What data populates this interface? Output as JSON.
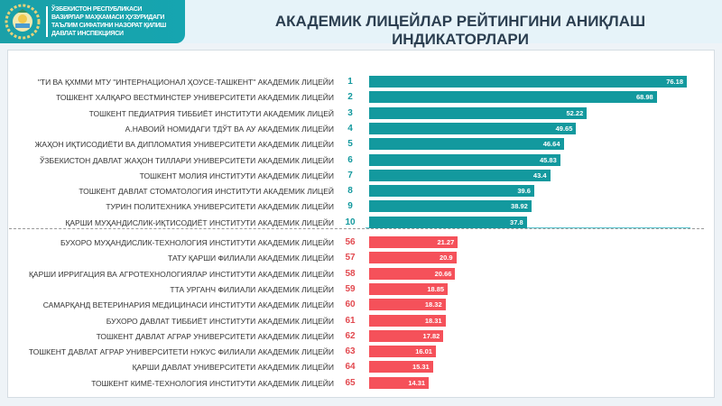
{
  "header": {
    "org_lines": [
      "ЎЗБЕКИСТОН РЕСПУБЛИКАСИ",
      "ВАЗИРЛАР МАҲКАМАСИ ҲУЗУРИДАГИ",
      "ТАЪЛИМ СИФАТИНИ НАЗОРАТ ҚИЛИШ",
      "ДАВЛАТ ИНСПЕКЦИЯСИ"
    ],
    "title": "АКАДЕМИК ЛИЦЕЙЛАР РЕЙТИНГИНИ АНИҚЛАШ ИНДИКАТОРЛАРИ"
  },
  "colors": {
    "top": "#13999e",
    "bottom": "#f5515a",
    "rank_top": "#13999e",
    "rank_bottom": "#e2494f"
  },
  "chart_data": {
    "type": "bar",
    "orientation": "horizontal",
    "title": "АКАДЕМИК ЛИЦЕЙЛАР РЕЙТИНГИНИ АНИҚЛАШ ИНДИКАТОРЛАРИ",
    "xlim": [
      0,
      80
    ],
    "series": [
      {
        "name": "top",
        "items": [
          {
            "label": "\"ТИ ВА ҚХММИ  МТУ \"ИНТЕРНАЦИОНАЛ ҲОУСЕ-ТАШКЕНТ\" АКАДЕМИК ЛИЦЕЙИ",
            "rank": "1",
            "value": 76.18
          },
          {
            "label": "ТОШКЕНТ ХАЛҚАРО ВЕСТМИНСТЕР УНИВЕРСИТЕТИ АКАДЕМИК ЛИЦЕЙИ",
            "rank": "2",
            "value": 68.98
          },
          {
            "label": "ТОШКЕНТ ПЕДИАТРИЯ ТИББИЁТ ИНСТИТУТИ АКАДЕМИК ЛИЦЕЙ",
            "rank": "3",
            "value": 52.22
          },
          {
            "label": "А.НАВОИЙ НОМИДАГИ  ТДЎТ ВА АУ АКАДЕМИК ЛИЦЕЙИ",
            "rank": "4",
            "value": 49.65
          },
          {
            "label": "ЖАҲОН ИҚТИСОДИЁТИ ВА ДИПЛОМАТИЯ  УНИВЕРСИТЕТИ АКАДЕМИК ЛИЦЕЙИ",
            "rank": "5",
            "value": 46.64
          },
          {
            "label": "ЎЗБЕКИСТОН ДАВЛАТ ЖАҲОН ТИЛЛАРИ  УНИВЕРСИТЕТИ АКАДЕМИК ЛИЦЕЙИ",
            "rank": "6",
            "value": 45.83
          },
          {
            "label": "ТОШКЕНТ МОЛИЯ ИНСТИТУТИ АКАДЕМИК ЛИЦЕЙИ",
            "rank": "7",
            "value": 43.4
          },
          {
            "label": "ТОШКЕНТ ДАВЛАТ СТОМАТОЛОГИЯ ИНСТИТУТИ АКАДЕМИК ЛИЦЕЙ",
            "rank": "8",
            "value": 39.6
          },
          {
            "label": "ТУРИН  ПОЛИТЕХНИКА УНИВЕРСИТЕТИ АКАДЕМИК ЛИЦЕЙИ",
            "rank": "9",
            "value": 38.92
          },
          {
            "label": "ҚАРШИ  МУҲАНДИСЛИК-ИҚТИСОДИЁТ  ИНСТИТУТИ АКАДЕМИК ЛИЦЕЙИ",
            "rank": "10",
            "value": 37.8
          }
        ]
      },
      {
        "name": "bottom",
        "items": [
          {
            "label": "БУХОРО МУҲАНДИСЛИК-ТЕХНОЛОГИЯ ИНСТИТУТИ АКАДЕМИК ЛИЦЕЙИ",
            "rank": "56",
            "value": 21.27
          },
          {
            "label": "ТАТУ ҚАРШИ  ФИЛИАЛИ  АКАДЕМИК  ЛИЦЕЙИ",
            "rank": "57",
            "value": 20.9
          },
          {
            "label": "ҚАРШИ  ИРРИГАЦИЯ  ВА  АГРОТЕХНОЛОГИЯЛАР ИНСТИТУТИ АКАДЕМИК ЛИЦЕЙИ",
            "rank": "58",
            "value": 20.66
          },
          {
            "label": "ТТА УРГАНЧ  ФИЛИАЛИ  АКАДЕМИК  ЛИЦЕЙИ",
            "rank": "59",
            "value": 18.85
          },
          {
            "label": "САМАРҚАНД  ВЕТЕРИНАРИЯ  МЕДИЦИНАСИ  ИНСТИТУТИ  АКАДЕМИК  ЛИЦЕЙИ",
            "rank": "60",
            "value": 18.32
          },
          {
            "label": "БУХОРО ДАВЛАТ ТИББИЁТ ИНСТИТУТИ АКАДЕМИК ЛИЦЕЙИ",
            "rank": "61",
            "value": 18.31
          },
          {
            "label": "ТОШКЕНТ ДАВЛАТ АГРАР УНИВЕРСИТЕТИ АКАДЕМИК ЛИЦЕЙИ",
            "rank": "62",
            "value": 17.82
          },
          {
            "label": "ТОШКЕНТ ДАВЛАТ АГРАР УНИВЕРСИТЕТИ НУКУС ФИЛИАЛИ АКАДЕМИК ЛИЦЕЙИ",
            "rank": "63",
            "value": 16.01
          },
          {
            "label": "ҚАРШИ  ДАВЛАТ УНИВЕРСИТЕТИ АКАДЕМИК ЛИЦЕЙИ",
            "rank": "64",
            "value": 15.31
          },
          {
            "label": "ТОШКЕНТ КИМЁ-ТЕХНОЛОГИЯ ИНСТИТУТИ АКАДЕМИК ЛИЦЕЙИ",
            "rank": "65",
            "value": 14.31
          }
        ]
      }
    ]
  }
}
